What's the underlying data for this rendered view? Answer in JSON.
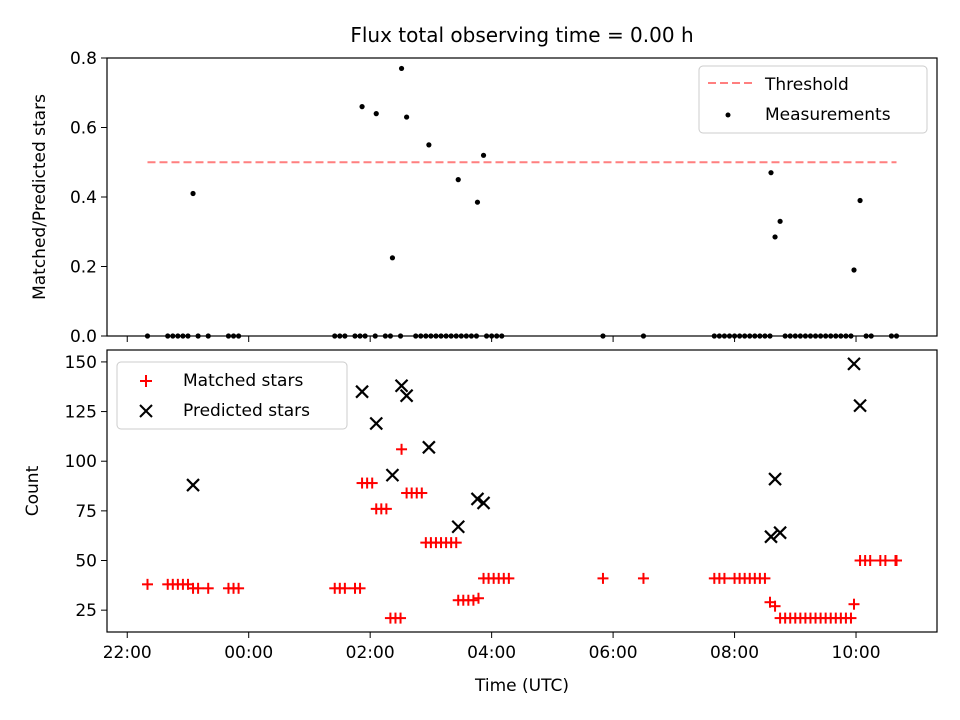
{
  "chart_data": [
    {
      "type": "scatter",
      "title": "Flux total observing time = 0.00 h",
      "xlabel": "",
      "ylabel": "Matched/Predicted stars",
      "ylim": [
        0,
        0.8
      ],
      "y_ticks": [
        "0.0",
        "0.2",
        "0.4",
        "0.6",
        "0.8"
      ],
      "y_tick_values": [
        0,
        0.2,
        0.4,
        0.6,
        0.8
      ],
      "legend_position": "top-right",
      "threshold": {
        "name": "Threshold",
        "value": 0.5,
        "x_start": "22:20",
        "x_end": "10:40",
        "color": "#ff7f7f"
      },
      "series": [
        {
          "name": "Measurements",
          "color": "#000000",
          "points": [
            [
              "22:20",
              0
            ],
            [
              "22:40",
              0
            ],
            [
              "22:45",
              0
            ],
            [
              "22:50",
              0
            ],
            [
              "22:55",
              0
            ],
            [
              "23:00",
              0
            ],
            [
              "23:05",
              0.41
            ],
            [
              "23:10",
              0
            ],
            [
              "23:20",
              0
            ],
            [
              "23:40",
              0
            ],
            [
              "23:45",
              0
            ],
            [
              "23:50",
              0
            ],
            [
              "01:25",
              0
            ],
            [
              "01:30",
              0
            ],
            [
              "01:35",
              0
            ],
            [
              "01:45",
              0
            ],
            [
              "01:50",
              0
            ],
            [
              "01:55",
              0
            ],
            [
              "01:52",
              0.66
            ],
            [
              "02:05",
              0
            ],
            [
              "02:06",
              0.64
            ],
            [
              "02:15",
              0
            ],
            [
              "02:20",
              0
            ],
            [
              "02:22",
              0.225
            ],
            [
              "02:30",
              0
            ],
            [
              "02:31",
              0.77
            ],
            [
              "02:36",
              0.63
            ],
            [
              "02:45",
              0
            ],
            [
              "02:50",
              0
            ],
            [
              "02:55",
              0
            ],
            [
              "02:58",
              0.55
            ],
            [
              "03:00",
              0
            ],
            [
              "03:05",
              0
            ],
            [
              "03:10",
              0
            ],
            [
              "03:15",
              0
            ],
            [
              "03:20",
              0
            ],
            [
              "03:25",
              0
            ],
            [
              "03:27",
              0.45
            ],
            [
              "03:30",
              0
            ],
            [
              "03:35",
              0
            ],
            [
              "03:40",
              0
            ],
            [
              "03:45",
              0
            ],
            [
              "03:46",
              0.385
            ],
            [
              "03:52",
              0.52
            ],
            [
              "03:55",
              0
            ],
            [
              "04:00",
              0
            ],
            [
              "04:05",
              0
            ],
            [
              "04:10",
              0
            ],
            [
              "05:50",
              0
            ],
            [
              "06:30",
              0
            ],
            [
              "07:40",
              0
            ],
            [
              "07:45",
              0
            ],
            [
              "07:50",
              0
            ],
            [
              "07:55",
              0
            ],
            [
              "08:00",
              0
            ],
            [
              "08:05",
              0
            ],
            [
              "08:10",
              0
            ],
            [
              "08:15",
              0
            ],
            [
              "08:20",
              0
            ],
            [
              "08:25",
              0
            ],
            [
              "08:30",
              0
            ],
            [
              "08:35",
              0
            ],
            [
              "08:36",
              0.47
            ],
            [
              "08:40",
              0.285
            ],
            [
              "08:45",
              0.33
            ],
            [
              "08:50",
              0
            ],
            [
              "08:55",
              0
            ],
            [
              "09:00",
              0
            ],
            [
              "09:05",
              0
            ],
            [
              "09:10",
              0
            ],
            [
              "09:15",
              0
            ],
            [
              "09:20",
              0
            ],
            [
              "09:25",
              0
            ],
            [
              "09:30",
              0
            ],
            [
              "09:35",
              0
            ],
            [
              "09:40",
              0
            ],
            [
              "09:45",
              0
            ],
            [
              "09:50",
              0
            ],
            [
              "09:55",
              0
            ],
            [
              "09:58",
              0.19
            ],
            [
              "10:04",
              0.39
            ],
            [
              "10:10",
              0
            ],
            [
              "10:15",
              0
            ],
            [
              "10:35",
              0
            ],
            [
              "10:40",
              0
            ]
          ]
        }
      ]
    },
    {
      "type": "scatter",
      "title": "",
      "xlabel": "Time (UTC)",
      "ylabel": "Count",
      "ylim": [
        14,
        156
      ],
      "xlim": [
        "21:40",
        "11:20"
      ],
      "y_ticks": [
        "25",
        "50",
        "75",
        "100",
        "125",
        "150"
      ],
      "y_tick_values": [
        25,
        50,
        75,
        100,
        125,
        150
      ],
      "x_ticks": [
        "22:00",
        "00:00",
        "02:00",
        "04:00",
        "06:00",
        "08:00",
        "10:00"
      ],
      "legend_position": "top-left",
      "series": [
        {
          "name": "Matched stars",
          "color": "#ff0000",
          "marker": "plus",
          "points": [
            [
              "22:20",
              38
            ],
            [
              "22:40",
              38
            ],
            [
              "22:45",
              38
            ],
            [
              "22:50",
              38
            ],
            [
              "22:55",
              38
            ],
            [
              "23:00",
              38
            ],
            [
              "23:05",
              36
            ],
            [
              "23:10",
              36
            ],
            [
              "23:20",
              36
            ],
            [
              "23:40",
              36
            ],
            [
              "23:45",
              36
            ],
            [
              "23:50",
              36
            ],
            [
              "01:25",
              36
            ],
            [
              "01:30",
              36
            ],
            [
              "01:35",
              36
            ],
            [
              "01:45",
              36
            ],
            [
              "01:50",
              36
            ],
            [
              "01:52",
              89
            ],
            [
              "01:57",
              89
            ],
            [
              "02:02",
              89
            ],
            [
              "02:06",
              76
            ],
            [
              "02:11",
              76
            ],
            [
              "02:16",
              76
            ],
            [
              "02:20",
              21
            ],
            [
              "02:25",
              21
            ],
            [
              "02:30",
              21
            ],
            [
              "02:31",
              106
            ],
            [
              "02:36",
              84
            ],
            [
              "02:41",
              84
            ],
            [
              "02:46",
              84
            ],
            [
              "02:51",
              84
            ],
            [
              "02:55",
              59
            ],
            [
              "03:00",
              59
            ],
            [
              "03:05",
              59
            ],
            [
              "03:10",
              59
            ],
            [
              "03:15",
              59
            ],
            [
              "03:20",
              59
            ],
            [
              "03:25",
              59
            ],
            [
              "03:27",
              30
            ],
            [
              "03:32",
              30
            ],
            [
              "03:37",
              30
            ],
            [
              "03:42",
              30
            ],
            [
              "03:47",
              31
            ],
            [
              "03:52",
              41
            ],
            [
              "03:57",
              41
            ],
            [
              "04:02",
              41
            ],
            [
              "04:07",
              41
            ],
            [
              "04:12",
              41
            ],
            [
              "04:17",
              41
            ],
            [
              "05:50",
              41
            ],
            [
              "06:30",
              41
            ],
            [
              "07:40",
              41
            ],
            [
              "07:45",
              41
            ],
            [
              "07:50",
              41
            ],
            [
              "08:00",
              41
            ],
            [
              "08:05",
              41
            ],
            [
              "08:10",
              41
            ],
            [
              "08:15",
              41
            ],
            [
              "08:20",
              41
            ],
            [
              "08:25",
              41
            ],
            [
              "08:30",
              41
            ],
            [
              "08:35",
              29
            ],
            [
              "08:40",
              27
            ],
            [
              "08:45",
              21
            ],
            [
              "08:50",
              21
            ],
            [
              "08:55",
              21
            ],
            [
              "09:00",
              21
            ],
            [
              "09:05",
              21
            ],
            [
              "09:10",
              21
            ],
            [
              "09:15",
              21
            ],
            [
              "09:20",
              21
            ],
            [
              "09:25",
              21
            ],
            [
              "09:30",
              21
            ],
            [
              "09:35",
              21
            ],
            [
              "09:40",
              21
            ],
            [
              "09:45",
              21
            ],
            [
              "09:50",
              21
            ],
            [
              "09:55",
              21
            ],
            [
              "09:58",
              28
            ],
            [
              "10:04",
              50
            ],
            [
              "10:09",
              50
            ],
            [
              "10:14",
              50
            ],
            [
              "10:24",
              50
            ],
            [
              "10:29",
              50
            ],
            [
              "10:39",
              50
            ],
            [
              "10:40",
              50
            ]
          ]
        },
        {
          "name": "Predicted stars",
          "color": "#000000",
          "marker": "x",
          "points": [
            [
              "23:05",
              88
            ],
            [
              "01:52",
              135
            ],
            [
              "02:06",
              119
            ],
            [
              "02:22",
              93
            ],
            [
              "02:31",
              138
            ],
            [
              "02:36",
              133
            ],
            [
              "02:58",
              107
            ],
            [
              "03:27",
              67
            ],
            [
              "03:46",
              81
            ],
            [
              "03:52",
              79
            ],
            [
              "08:36",
              62
            ],
            [
              "08:40",
              91
            ],
            [
              "08:45",
              64
            ],
            [
              "09:58",
              149
            ],
            [
              "10:04",
              128
            ]
          ]
        }
      ]
    }
  ]
}
